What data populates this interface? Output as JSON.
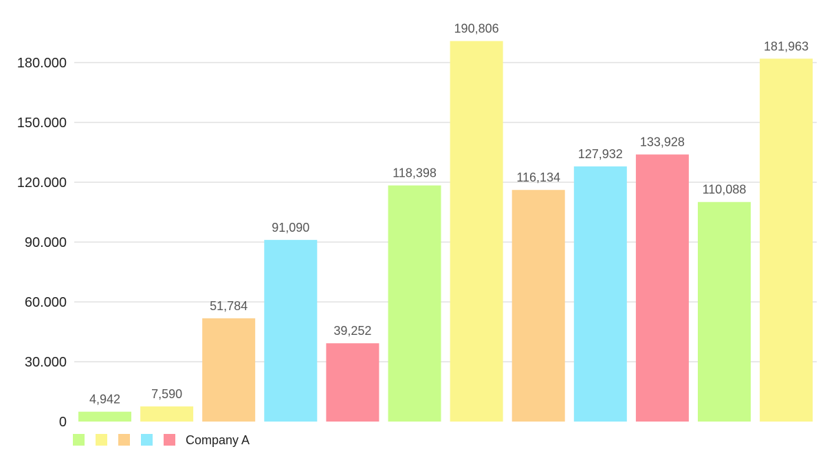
{
  "chart_data": {
    "type": "bar",
    "title": "",
    "xlabel": "",
    "ylabel": "",
    "ylim": [
      0,
      190000
    ],
    "yticks": [
      0,
      30000,
      60000,
      90000,
      120000,
      150000,
      180000
    ],
    "ytick_labels": [
      "0",
      "30.000",
      "60.000",
      "90.000",
      "120.000",
      "150.000",
      "180.000"
    ],
    "grid": true,
    "legend_position": "bottom-left",
    "values": [
      4942,
      7590,
      51784,
      91090,
      39252,
      118398,
      190806,
      116134,
      127932,
      133928,
      110088,
      181963
    ],
    "value_labels": [
      "4,942",
      "7,590",
      "51,784",
      "91,090",
      "39,252",
      "118,398",
      "190,806",
      "116,134",
      "127,932",
      "133,928",
      "110,088",
      "181,963"
    ],
    "bar_colors": [
      "#c8fc8a",
      "#fbf58c",
      "#fdd08c",
      "#8ee9fc",
      "#fd8f9b",
      "#c8fc8a",
      "#fbf58c",
      "#fdd08c",
      "#8ee9fc",
      "#fd8f9b",
      "#c8fc8a",
      "#fbf58c"
    ],
    "legend": [
      {
        "label": "",
        "color": "#c8fc8a"
      },
      {
        "label": "",
        "color": "#fbf58c"
      },
      {
        "label": "",
        "color": "#fdd08c"
      },
      {
        "label": "",
        "color": "#8ee9fc"
      },
      {
        "label": "Company A",
        "color": "#fd8f9b"
      }
    ]
  }
}
